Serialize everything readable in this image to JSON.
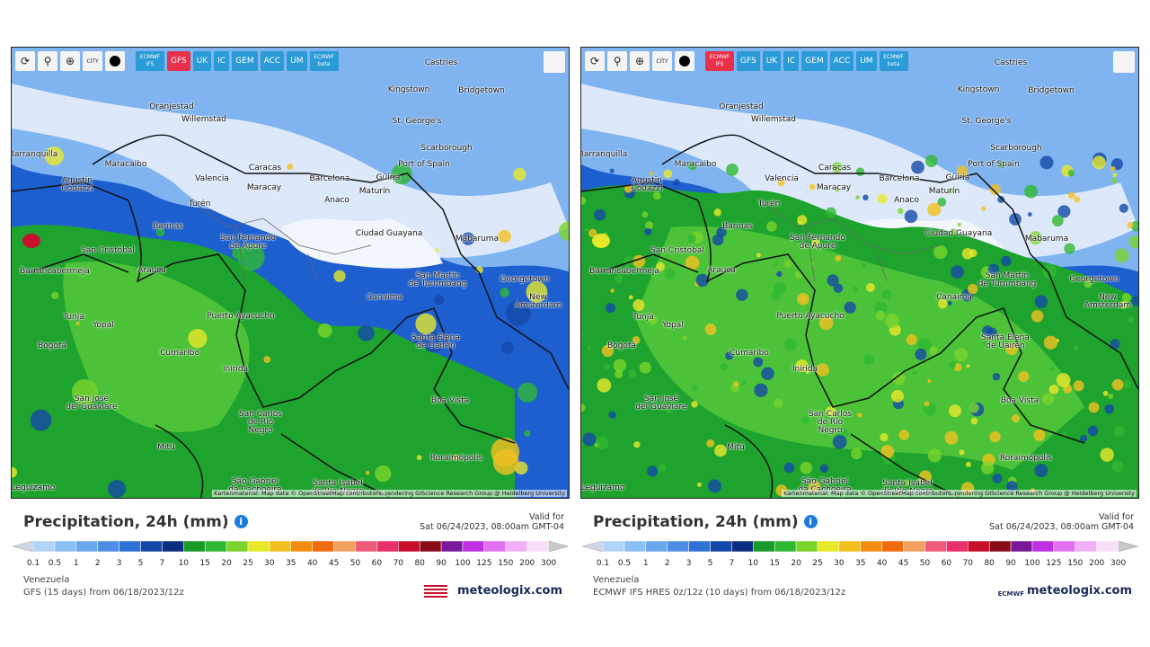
{
  "panels": [
    {
      "toolbar": {
        "city_icon": "CITY",
        "models": [
          "ECMWF IFS",
          "GFS",
          "UK",
          "IC",
          "GEM",
          "ACC",
          "UM",
          "ECMWF beta"
        ]
      },
      "cities": [
        "Castries",
        "Kingstown",
        "Bridgetown",
        "Oranjestad",
        "Willemstad",
        "St. George's",
        "Scarborough",
        "Barranquilla",
        "Port of Spain",
        "Maracaibo",
        "Caracas",
        "Agustin\nCodazzi",
        "Valencia",
        "Barcelona",
        "Güiria",
        "Maracay",
        "Anaco",
        "Maturín",
        "Turén",
        "Barinas",
        "Ciudad Guayana",
        "Mabaruma",
        "San Fernando\nde Apure",
        "San Cristóbal",
        "Arauca",
        "Barrancabermeja",
        "San Martín\nde Turumbang",
        "Georgetown",
        "Canaima",
        "New Amsterdam",
        "Tunja",
        "Yopal",
        "Puerto Ayacucho",
        "Bogotá",
        "Santa Elena\nde Uairén",
        "Cumaribo",
        "Inírida",
        "Boa Vista",
        "San José\ndel Guaviare",
        "San Carlos\nde Río\nNegro",
        "Mitú",
        "Roraimópolis",
        "São Gabriel\nda Cachoeira",
        "Santa Isabel\ndo Rio Negro",
        "Leguízamo"
      ],
      "attribution": "Kartenmaterial: Map data © OpenStreetMap contributors, rendering GIScience Research Group @ Heidelberg University",
      "title": "Precipitation, 24h (mm)",
      "valid_label": "Valid for",
      "valid_time": "Sat 06/24/2023, 08:00am GMT-04",
      "scale": [
        "0.1",
        "0.5",
        "1",
        "2",
        "3",
        "5",
        "7",
        "10",
        "15",
        "20",
        "25",
        "30",
        "35",
        "40",
        "45",
        "50",
        "60",
        "70",
        "80",
        "90",
        "100",
        "125",
        "150",
        "200",
        "300"
      ],
      "region": "Venezuela",
      "model": "GFS (15 days) from 06/18/2023/12z",
      "brand": "meteologix.com"
    },
    {
      "toolbar": {
        "city_icon": "CITY",
        "models": [
          "ECMWF IFS",
          "GFS",
          "UK",
          "IC",
          "GEM",
          "ACC",
          "UM",
          "ECMWF beta"
        ]
      },
      "cities": [
        "Castries",
        "Kingstown",
        "Bridgetown",
        "Oranjestad",
        "Willemstad",
        "St. George's",
        "Scarborough",
        "Barranquilla",
        "Port of Spain",
        "Maracaibo",
        "Caracas",
        "Agustin\nCodazzi",
        "Valencia",
        "Barcelona",
        "Güiria",
        "Maracay",
        "Anaco",
        "Maturín",
        "Turén",
        "Barinas",
        "Ciudad Guayana",
        "Mabaruma",
        "San Fernando\nde Apure",
        "San Cristóbal",
        "Arauca",
        "Barrancabermeja",
        "San Martín\nde Turumbang",
        "Georgetown",
        "Canaima",
        "New Amsterdam",
        "Tunja",
        "Yopal",
        "Puerto Ayacucho",
        "Bogotá",
        "Santa Elena\nde Uairén",
        "Cumaribo",
        "Inírida",
        "Boa Vista",
        "San José\ndel Guaviare",
        "San Carlos\nde Río\nNegro",
        "Mitú",
        "Roraimópolis",
        "São Gabriel\nda Cachoeira",
        "Santa Isabel\ndo Rio Negro",
        "Leguízamo"
      ],
      "attribution": "Kartenmaterial: Map data © OpenStreetMap contributors, rendering GIScience Research Group @ Heidelberg University",
      "title": "Precipitation, 24h (mm)",
      "valid_label": "Valid for",
      "valid_time": "Sat 06/24/2023, 08:00am GMT-04",
      "scale": [
        "0.1",
        "0.5",
        "1",
        "2",
        "3",
        "5",
        "7",
        "10",
        "15",
        "20",
        "25",
        "30",
        "35",
        "40",
        "45",
        "50",
        "60",
        "70",
        "80",
        "90",
        "100",
        "125",
        "150",
        "200",
        "300"
      ],
      "region": "Venezuela",
      "model": "ECMWF IFS HRES 0z/12z (10 days) from 06/18/2023/12z",
      "brand": "meteologix.com",
      "source_logo": "ECMWF"
    }
  ]
}
